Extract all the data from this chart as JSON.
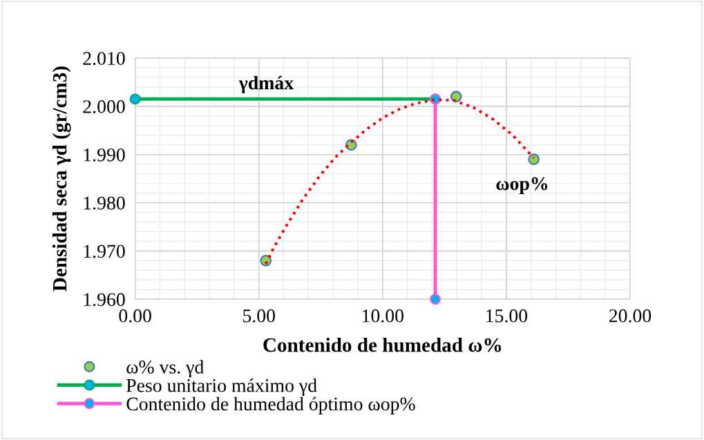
{
  "chart_data": {
    "type": "scatter",
    "xlabel": "Contenido de humedad ω%",
    "ylabel": "Densidad seca γd (gr/cm3)",
    "xlim": [
      0,
      20
    ],
    "ylim": [
      1.96,
      2.01
    ],
    "xticks": [
      {
        "value": 0,
        "label": "0.00"
      },
      {
        "value": 5,
        "label": "5.00"
      },
      {
        "value": 10,
        "label": "10.00"
      },
      {
        "value": 15,
        "label": "15.00"
      },
      {
        "value": 20,
        "label": "20.00"
      }
    ],
    "yticks": [
      {
        "value": 1.96,
        "label": "1.960"
      },
      {
        "value": 1.97,
        "label": "1.970"
      },
      {
        "value": 1.98,
        "label": "1.980"
      },
      {
        "value": 1.99,
        "label": "1.990"
      },
      {
        "value": 2.0,
        "label": "2.000"
      },
      {
        "value": 2.01,
        "label": "2.010"
      }
    ],
    "grid": true,
    "legend": "bottom",
    "marker": "circle",
    "series": [
      {
        "name": "ω% vs. γd",
        "color": "#92d050",
        "x": [
          5.28,
          8.73,
          12.97,
          16.11
        ],
        "values": [
          1.968,
          1.992,
          2.002,
          1.989
        ]
      },
      {
        "type": "line",
        "marker": "none",
        "line_style": "dotted",
        "color": "#ff0000",
        "x": [
          5.28,
          5.58,
          6.11,
          6.76,
          7.42,
          8.07,
          8.72,
          9.37,
          10.03,
          10.68,
          11.33,
          12.12,
          12.9,
          13.69,
          14.47,
          15.26,
          16.11
        ],
        "values": [
          1.9673,
          1.9705,
          1.9752,
          1.9806,
          1.9853,
          1.9893,
          1.9925,
          1.9953,
          1.9977,
          1.9994,
          2.0006,
          2.0014,
          2.0012,
          1.9997,
          1.9973,
          1.994,
          1.9893
        ]
      },
      {
        "name": "Peso unitario máximo γd",
        "type": "line",
        "line_style": "solid",
        "color": "#00b050",
        "x": [
          0,
          12.13
        ],
        "values": [
          2.0015,
          2.0015
        ]
      },
      {
        "name": "Contenido de humedad óptimo ωop%",
        "type": "line",
        "line_style": "solid",
        "color": "#ff57d5",
        "x": [
          12.13,
          12.13
        ],
        "values": [
          2.0015,
          1.96
        ]
      }
    ],
    "annotations": [
      {
        "text": "γdmáx",
        "x": 5.3,
        "y": 2.0015
      },
      {
        "text": "ωop%",
        "x": 16.11,
        "y": 1.989
      }
    ]
  }
}
